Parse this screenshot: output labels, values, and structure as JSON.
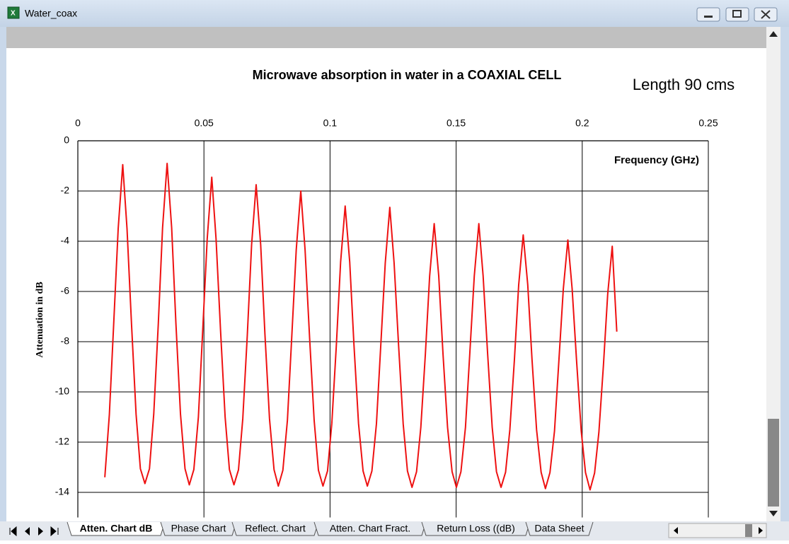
{
  "window": {
    "title": "Water_coax"
  },
  "chart_data": {
    "type": "line",
    "title": "Microwave absorption in water in a COAXIAL CELL",
    "annotation": "Length 90 cms",
    "x_label": "Frequency (GHz)",
    "y_label": "Attenuation in dB",
    "x_axis_position": "top",
    "color": "#ee1111",
    "grid": true,
    "xlim": [
      0,
      0.25
    ],
    "xticks": [
      0,
      0.05,
      0.1,
      0.15,
      0.2,
      0.25
    ],
    "ylim": [
      -15,
      0
    ],
    "yticks": [
      0,
      -2,
      -4,
      -6,
      -8,
      -10,
      -12,
      -14
    ],
    "x": [
      0.0107,
      0.0125,
      0.0142,
      0.016,
      0.0178,
      0.0195,
      0.0213,
      0.0231,
      0.0248,
      0.0266,
      0.0284,
      0.0301,
      0.0319,
      0.0336,
      0.0354,
      0.0372,
      0.0389,
      0.0407,
      0.0425,
      0.0442,
      0.046,
      0.0478,
      0.0495,
      0.0513,
      0.0531,
      0.0548,
      0.0566,
      0.0584,
      0.0601,
      0.0619,
      0.0637,
      0.0654,
      0.0672,
      0.0689,
      0.0707,
      0.0725,
      0.0742,
      0.076,
      0.0778,
      0.0795,
      0.0813,
      0.0831,
      0.0848,
      0.0866,
      0.0884,
      0.0901,
      0.0919,
      0.0937,
      0.0954,
      0.0972,
      0.099,
      0.1007,
      0.1025,
      0.1042,
      0.106,
      0.1078,
      0.1095,
      0.1113,
      0.1131,
      0.1148,
      0.1166,
      0.1184,
      0.1201,
      0.1219,
      0.1237,
      0.1254,
      0.1272,
      0.129,
      0.1307,
      0.1325,
      0.1343,
      0.136,
      0.1378,
      0.1395,
      0.1413,
      0.1431,
      0.1448,
      0.1466,
      0.1484,
      0.1501,
      0.1519,
      0.1537,
      0.1554,
      0.1572,
      0.159,
      0.1607,
      0.1625,
      0.1643,
      0.166,
      0.1678,
      0.1696,
      0.1713,
      0.1731,
      0.1748,
      0.1766,
      0.1784,
      0.1801,
      0.1819,
      0.1837,
      0.1854,
      0.1872,
      0.189,
      0.1907,
      0.1925,
      0.1943,
      0.196,
      0.1978,
      0.1996,
      0.2013,
      0.2031,
      0.2049,
      0.2066,
      0.2084,
      0.2101,
      0.2119,
      0.2137
    ],
    "values": [
      -13.4,
      -10.9,
      -7.33,
      -3.5,
      -0.95,
      -3.5,
      -7.33,
      -10.9,
      -13.06,
      -13.65,
      -13.06,
      -10.88,
      -7.3,
      -3.46,
      -0.9,
      -3.46,
      -7.3,
      -10.88,
      -13.06,
      -13.7,
      -13.09,
      -11.0,
      -7.58,
      -3.9,
      -1.45,
      -3.9,
      -7.58,
      -11.0,
      -13.09,
      -13.7,
      -13.1,
      -11.07,
      -7.73,
      -4.14,
      -1.75,
      -4.14,
      -7.73,
      -11.07,
      -13.1,
      -13.75,
      -13.12,
      -11.13,
      -7.85,
      -4.34,
      -2.0,
      -4.34,
      -7.85,
      -11.13,
      -13.12,
      -13.75,
      -13.15,
      -11.26,
      -8.15,
      -4.82,
      -2.6,
      -4.82,
      -8.15,
      -11.26,
      -13.15,
      -13.75,
      -13.15,
      -11.27,
      -8.18,
      -4.86,
      -2.65,
      -4.86,
      -8.18,
      -11.27,
      -13.15,
      -13.8,
      -13.18,
      -11.41,
      -8.5,
      -5.38,
      -3.3,
      -5.38,
      -8.5,
      -11.41,
      -13.18,
      -13.8,
      -13.18,
      -11.41,
      -8.5,
      -5.38,
      -3.3,
      -5.38,
      -8.5,
      -11.41,
      -13.18,
      -13.8,
      -13.2,
      -11.51,
      -8.73,
      -5.74,
      -3.75,
      -5.74,
      -8.73,
      -11.51,
      -13.2,
      -13.85,
      -13.21,
      -11.56,
      -8.83,
      -5.9,
      -3.95,
      -5.9,
      -8.83,
      -11.56,
      -13.21,
      -13.9,
      -13.23,
      -11.61,
      -8.95,
      -6.1,
      -4.2,
      -7.6
    ]
  },
  "sheet_tabs": [
    "Atten. Chart dB",
    "Phase Chart",
    "Reflect. Chart",
    "Atten. Chart Fract.",
    "Return Loss ((dB)",
    "Data Sheet"
  ]
}
